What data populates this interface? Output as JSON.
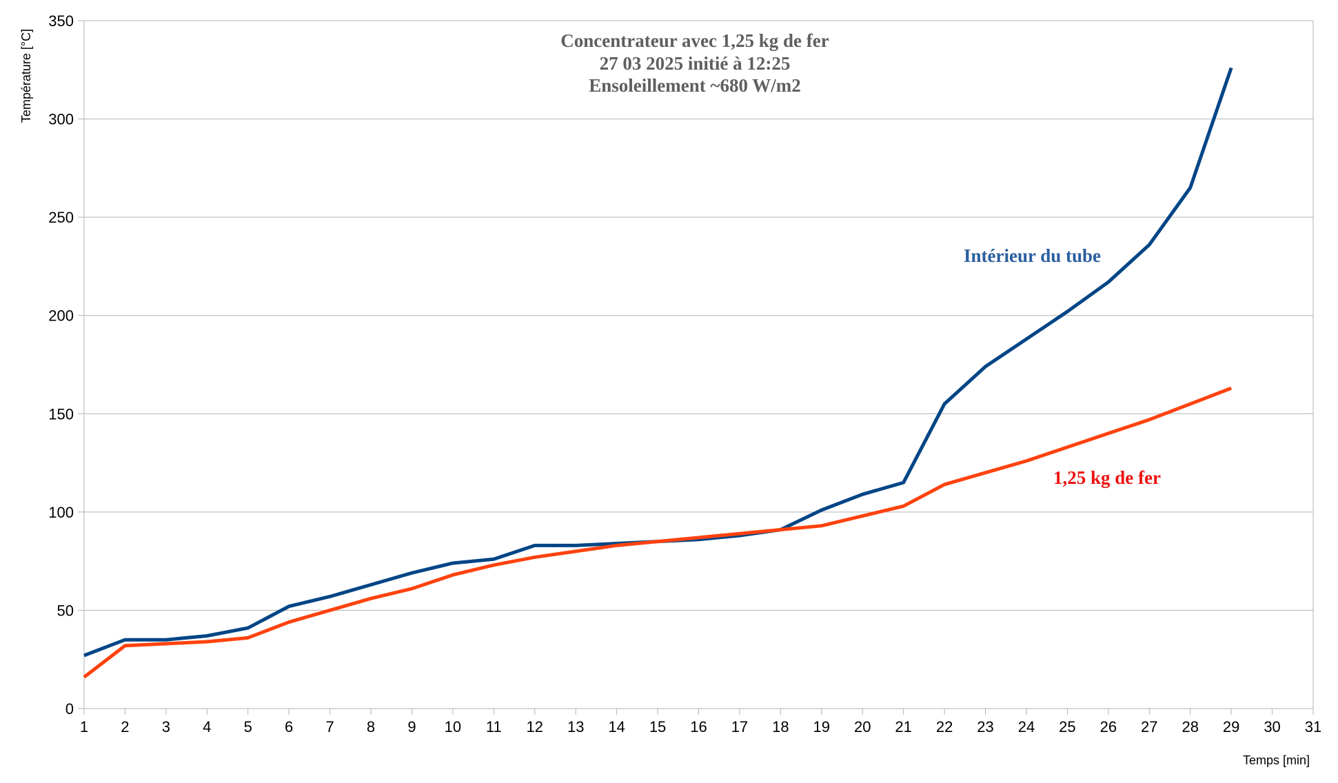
{
  "chart_data": {
    "type": "line",
    "title": [
      "Concentrateur avec 1,25 kg de fer",
      "27 03 2025 initié à 12:25",
      "Ensoleillement ~680 W/m2"
    ],
    "xlabel": "Temps [min]",
    "ylabel": "Température [°C]",
    "xlim": [
      1,
      31
    ],
    "ylim": [
      0,
      350
    ],
    "xticks": [
      1,
      2,
      3,
      4,
      5,
      6,
      7,
      8,
      9,
      10,
      11,
      12,
      13,
      14,
      15,
      16,
      17,
      18,
      19,
      20,
      21,
      22,
      23,
      24,
      25,
      26,
      27,
      28,
      29,
      30,
      31
    ],
    "yticks": [
      0,
      50,
      100,
      150,
      200,
      250,
      300,
      350
    ],
    "grid": true,
    "legend": "none",
    "x": [
      1,
      2,
      3,
      4,
      5,
      6,
      7,
      8,
      9,
      10,
      11,
      12,
      13,
      14,
      15,
      16,
      17,
      18,
      19,
      20,
      21,
      22,
      23,
      24,
      25,
      26,
      27,
      28,
      29
    ],
    "series": [
      {
        "name": "Intérieur du tube",
        "color": "#004586",
        "label_color": "#2a5e9f",
        "values": [
          27,
          35,
          35,
          37,
          41,
          52,
          57,
          63,
          69,
          74,
          76,
          83,
          83,
          84,
          85,
          86,
          88,
          91,
          101,
          109,
          115,
          155,
          174,
          188,
          202,
          217,
          236,
          265,
          326
        ]
      },
      {
        "name": "1,25 kg de fer",
        "color": "#ff420e",
        "label_color": "#ee1111",
        "values": [
          16,
          32,
          33,
          34,
          36,
          44,
          50,
          56,
          61,
          68,
          73,
          77,
          80,
          83,
          85,
          87,
          89,
          91,
          93,
          98,
          103,
          114,
          120,
          126,
          133,
          140,
          147,
          155,
          163
        ]
      }
    ]
  }
}
